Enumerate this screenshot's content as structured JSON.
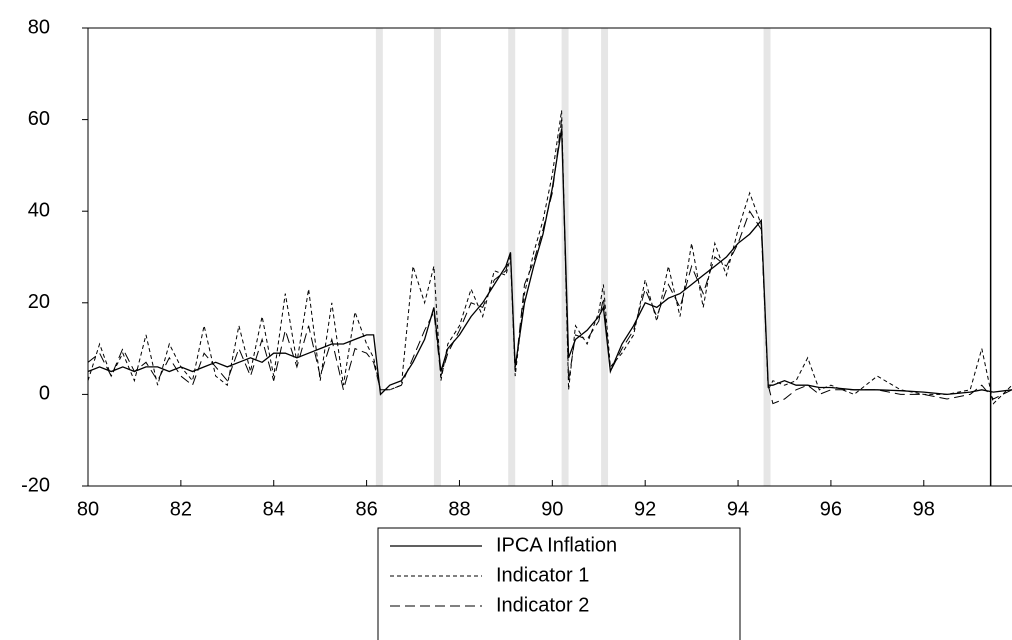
{
  "chart_data": {
    "type": "line",
    "x": [
      80,
      80.25,
      80.5,
      80.75,
      81,
      81.25,
      81.5,
      81.75,
      82,
      82.25,
      82.5,
      82.75,
      83,
      83.25,
      83.5,
      83.75,
      84,
      84.25,
      84.5,
      84.75,
      85,
      85.25,
      85.5,
      85.75,
      86,
      86.15,
      86.3,
      86.5,
      86.75,
      87,
      87.25,
      87.45,
      87.6,
      87.75,
      88,
      88.25,
      88.5,
      88.75,
      89,
      89.1,
      89.2,
      89.4,
      89.6,
      89.8,
      90,
      90.2,
      90.35,
      90.5,
      90.75,
      91,
      91.1,
      91.25,
      91.5,
      91.75,
      92,
      92.25,
      92.5,
      92.75,
      93,
      93.25,
      93.5,
      93.75,
      94,
      94.25,
      94.5,
      94.65,
      94.75,
      95,
      95.25,
      95.5,
      95.75,
      96,
      96.5,
      97,
      97.5,
      98,
      98.5,
      99,
      99.25,
      99.5,
      99.9
    ],
    "series": [
      {
        "name": "IPCA Inflation",
        "color": "#000000",
        "dash": "none",
        "width": 1.3,
        "values": [
          5,
          6,
          5,
          6,
          5,
          6,
          6,
          5,
          6,
          5,
          6,
          7,
          6,
          7,
          8,
          7,
          9,
          9,
          8,
          9,
          10,
          11,
          11,
          12,
          13,
          13,
          0,
          2,
          3,
          7,
          12,
          19,
          5,
          10,
          13,
          17,
          20,
          24,
          28,
          31,
          6,
          20,
          28,
          35,
          45,
          58,
          8,
          12,
          14,
          17,
          19,
          5,
          11,
          15,
          20,
          19,
          21,
          22,
          24,
          26,
          28,
          30,
          33,
          35,
          38,
          2,
          2,
          3,
          2,
          2,
          1.5,
          1.5,
          1,
          1,
          0.8,
          0.5,
          0,
          0.5,
          1,
          0.5,
          1
        ]
      },
      {
        "name": "Indicator 1",
        "color": "#000000",
        "dash": "4 3",
        "width": 1,
        "values": [
          3,
          11,
          4,
          9,
          3,
          13,
          2,
          11,
          6,
          3,
          15,
          4,
          2,
          15,
          5,
          17,
          4,
          22,
          7,
          23,
          3,
          20,
          2,
          18,
          11,
          8,
          1,
          1,
          2,
          28,
          20,
          28,
          3,
          11,
          15,
          23,
          17,
          27,
          26,
          30,
          4,
          22,
          31,
          38,
          48,
          62,
          1,
          15,
          11,
          18,
          24,
          6,
          9,
          13,
          25,
          16,
          28,
          17,
          33,
          19,
          33,
          26,
          36,
          44,
          37,
          1,
          3,
          2,
          3,
          8,
          1,
          2,
          0,
          4,
          1,
          0,
          0,
          1,
          10,
          -2,
          2
        ]
      },
      {
        "name": "Indicator 2",
        "color": "#000000",
        "dash": "10 5",
        "width": 1,
        "values": [
          7,
          9,
          4,
          10,
          5,
          7,
          3,
          8,
          4,
          2,
          9,
          6,
          3,
          10,
          4,
          12,
          3,
          14,
          6,
          15,
          4,
          12,
          1,
          10,
          9,
          7,
          1,
          1,
          2,
          8,
          14,
          18,
          4,
          9,
          14,
          20,
          19,
          25,
          27,
          31,
          5,
          24,
          29,
          36,
          44,
          60,
          3,
          13,
          12,
          16,
          21,
          5,
          10,
          14,
          23,
          17,
          24,
          19,
          28,
          22,
          30,
          28,
          33,
          40,
          36,
          2,
          -2,
          -1,
          1,
          2,
          0,
          1,
          1,
          1,
          0,
          0,
          -1,
          0,
          2,
          -1,
          1
        ]
      }
    ],
    "shaded_x": [
      [
        86.2,
        86.35
      ],
      [
        87.45,
        87.6
      ],
      [
        89.05,
        89.2
      ],
      [
        90.2,
        90.35
      ],
      [
        91.05,
        91.2
      ],
      [
        94.55,
        94.7
      ]
    ],
    "shade_color": "#e6e6e6",
    "vline_x": 99.44,
    "xlim": [
      80,
      99.9
    ],
    "xticks": [
      80,
      82,
      84,
      86,
      88,
      90,
      92,
      94,
      96,
      98
    ],
    "ylim": [
      -20,
      80
    ],
    "yticks": [
      -20,
      0,
      20,
      40,
      60,
      80
    ],
    "grid": false
  }
}
